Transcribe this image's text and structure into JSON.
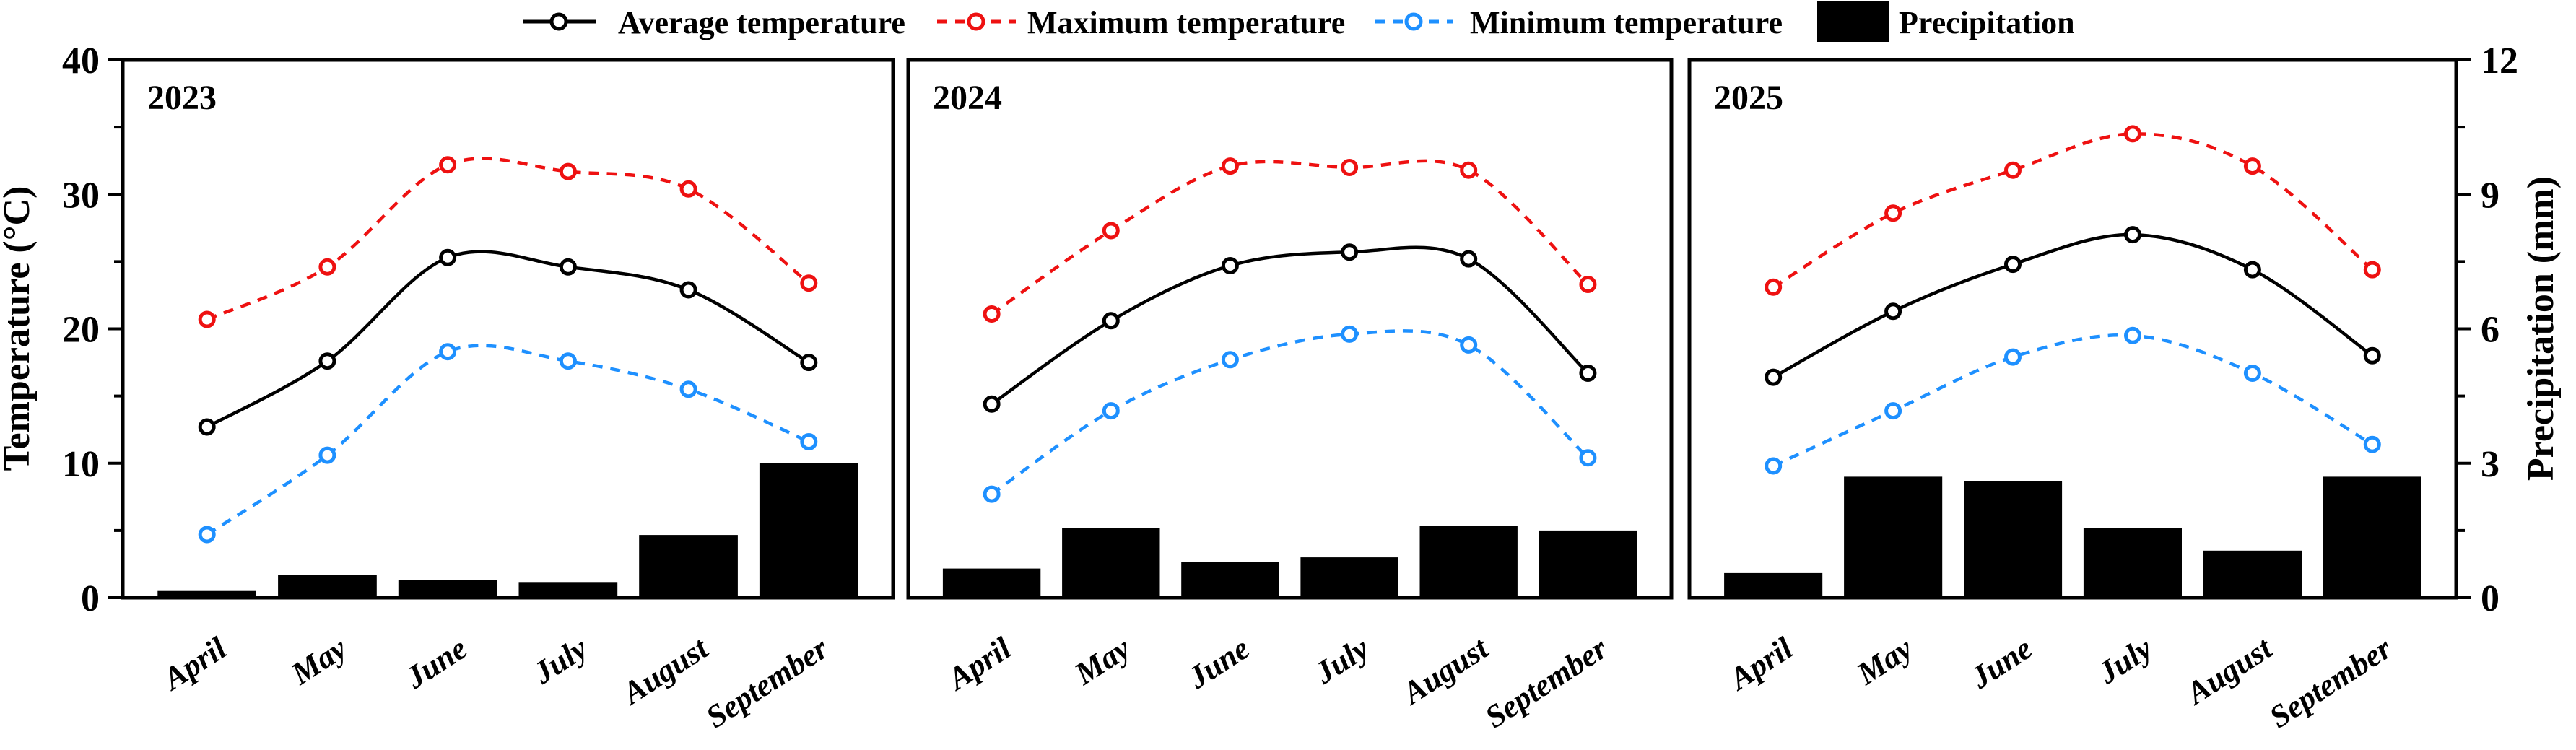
{
  "figure": {
    "y_left_title": "Temperature (°C)",
    "y_right_title": "Precipitation (mm)",
    "y_left_tick_labels": [
      "0",
      "10",
      "20",
      "30",
      "40"
    ],
    "y_right_tick_labels": [
      "0",
      "3",
      "6",
      "9",
      "12"
    ],
    "colors": {
      "average": "#000000",
      "maximum": "#ee1111",
      "minimum": "#1e90ff",
      "precipitation": "#000000",
      "background": "#ffffff"
    }
  },
  "legend": {
    "items": [
      {
        "label": "Average temperature",
        "type": "line",
        "style": "solid",
        "color": "#000000"
      },
      {
        "label": "Maximum temperature",
        "type": "line",
        "style": "dashed",
        "color": "#ee1111"
      },
      {
        "label": "Minimum temperature",
        "type": "line",
        "style": "dashed",
        "color": "#1e90ff"
      },
      {
        "label": "Precipitation",
        "type": "bar",
        "style": "filled",
        "color": "#000000"
      }
    ]
  },
  "chart_data": [
    {
      "type": "line+bar",
      "title": "2023",
      "categories": [
        "April",
        "May",
        "June",
        "July",
        "August",
        "September"
      ],
      "series": [
        {
          "name": "Average temperature",
          "type": "line",
          "axis": "temperature",
          "values": [
            12.7,
            17.6,
            25.3,
            24.6,
            22.9,
            17.5
          ]
        },
        {
          "name": "Maximum temperature",
          "type": "line",
          "axis": "temperature",
          "values": [
            20.7,
            24.6,
            32.2,
            31.7,
            30.4,
            23.4
          ]
        },
        {
          "name": "Minimum temperature",
          "type": "line",
          "axis": "temperature",
          "values": [
            4.7,
            10.6,
            18.3,
            17.6,
            15.5,
            11.6
          ]
        },
        {
          "name": "Precipitation",
          "type": "bar",
          "axis": "precipitation",
          "values": [
            0.15,
            0.5,
            0.4,
            0.35,
            1.4,
            3.0
          ]
        }
      ],
      "ylim_temperature": [
        0,
        40
      ],
      "ylim_precipitation": [
        0,
        12
      ],
      "grid": false
    },
    {
      "type": "line+bar",
      "title": "2024",
      "categories": [
        "April",
        "May",
        "June",
        "July",
        "August",
        "September"
      ],
      "series": [
        {
          "name": "Average temperature",
          "type": "line",
          "axis": "temperature",
          "values": [
            14.4,
            20.6,
            24.7,
            25.7,
            25.2,
            16.7
          ]
        },
        {
          "name": "Maximum temperature",
          "type": "line",
          "axis": "temperature",
          "values": [
            21.1,
            27.3,
            32.1,
            32.0,
            31.8,
            23.3
          ]
        },
        {
          "name": "Minimum temperature",
          "type": "line",
          "axis": "temperature",
          "values": [
            7.7,
            13.9,
            17.7,
            19.6,
            18.8,
            10.4
          ]
        },
        {
          "name": "Precipitation",
          "type": "bar",
          "axis": "precipitation",
          "values": [
            0.65,
            1.55,
            0.8,
            0.9,
            1.6,
            1.5
          ]
        }
      ],
      "ylim_temperature": [
        0,
        40
      ],
      "ylim_precipitation": [
        0,
        12
      ],
      "grid": false
    },
    {
      "type": "line+bar",
      "title": "2025",
      "categories": [
        "April",
        "May",
        "June",
        "July",
        "August",
        "September"
      ],
      "series": [
        {
          "name": "Average temperature",
          "type": "line",
          "axis": "temperature",
          "values": [
            16.4,
            21.3,
            24.8,
            27.0,
            24.4,
            18.0
          ]
        },
        {
          "name": "Maximum temperature",
          "type": "line",
          "axis": "temperature",
          "values": [
            23.1,
            28.6,
            31.8,
            34.5,
            32.1,
            24.4
          ]
        },
        {
          "name": "Minimum temperature",
          "type": "line",
          "axis": "temperature",
          "values": [
            9.8,
            13.9,
            17.9,
            19.5,
            16.7,
            11.4
          ]
        },
        {
          "name": "Precipitation",
          "type": "bar",
          "axis": "precipitation",
          "values": [
            0.55,
            2.7,
            2.6,
            1.55,
            1.05,
            2.7
          ]
        }
      ],
      "ylim_temperature": [
        0,
        40
      ],
      "ylim_precipitation": [
        0,
        12
      ],
      "grid": false
    }
  ]
}
